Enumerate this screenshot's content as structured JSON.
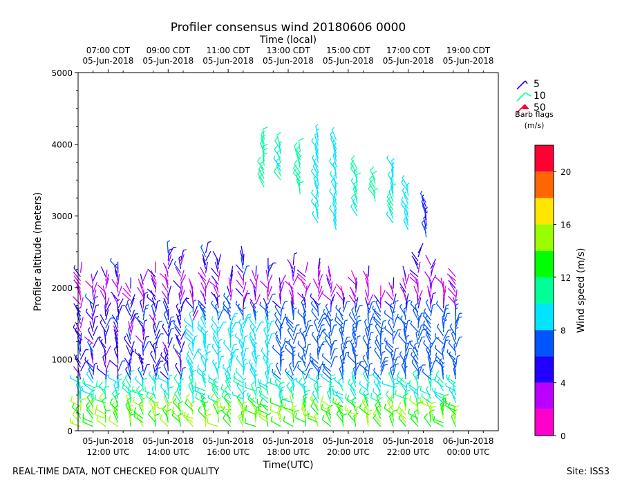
{
  "chart_data": {
    "type": "wind-barb-profile",
    "title": "Profiler consensus wind 20180606 0000",
    "top_axis_label": "Time (local)",
    "xlabel": "Time(UTC)",
    "ylabel": "Profiler altitude (meters)",
    "xlim_hours_after_1200utc": [
      -1,
      13
    ],
    "ylim": [
      0,
      5000
    ],
    "yticks": [
      {
        "value": 0,
        "label": "0"
      },
      {
        "value": 1000,
        "label": "1000"
      },
      {
        "value": 2000,
        "label": "2000"
      },
      {
        "value": 3000,
        "label": "3000"
      },
      {
        "value": 4000,
        "label": "4000"
      },
      {
        "value": 5000,
        "label": "5000"
      }
    ],
    "bottom_ticks": [
      {
        "hour": 0,
        "date": "05-Jun-2018",
        "time": "12:00 UTC"
      },
      {
        "hour": 2,
        "date": "05-Jun-2018",
        "time": "14:00 UTC"
      },
      {
        "hour": 4,
        "date": "05-Jun-2018",
        "time": "16:00 UTC"
      },
      {
        "hour": 6,
        "date": "05-Jun-2018",
        "time": "18:00 UTC"
      },
      {
        "hour": 8,
        "date": "05-Jun-2018",
        "time": "20:00 UTC"
      },
      {
        "hour": 10,
        "date": "05-Jun-2018",
        "time": "22:00 UTC"
      },
      {
        "hour": 12,
        "date": "06-Jun-2018",
        "time": "00:00 UTC"
      }
    ],
    "top_ticks": [
      {
        "hour": 0,
        "time": "07:00 CDT",
        "date": "05-Jun-2018"
      },
      {
        "hour": 2,
        "time": "09:00 CDT",
        "date": "05-Jun-2018"
      },
      {
        "hour": 4,
        "time": "11:00 CDT",
        "date": "05-Jun-2018"
      },
      {
        "hour": 6,
        "time": "13:00 CDT",
        "date": "05-Jun-2018"
      },
      {
        "hour": 8,
        "time": "15:00 CDT",
        "date": "05-Jun-2018"
      },
      {
        "hour": 10,
        "time": "17:00 CDT",
        "date": "05-Jun-2018"
      },
      {
        "hour": 12,
        "time": "19:00 CDT",
        "date": "05-Jun-2018"
      }
    ],
    "colorbar": {
      "label": "Wind speed (m/s)",
      "min": 0,
      "max": 22,
      "tick_values": [
        0,
        4,
        8,
        12,
        16,
        20
      ],
      "tick_labels": [
        "0",
        "4",
        "8",
        "12",
        "16",
        "20"
      ],
      "bins": [
        {
          "from": 0,
          "to": 2,
          "color": "#ff00cc"
        },
        {
          "from": 2,
          "to": 4,
          "color": "#bb00ff"
        },
        {
          "from": 4,
          "to": 6,
          "color": "#2200ff"
        },
        {
          "from": 6,
          "to": 8,
          "color": "#0055ff"
        },
        {
          "from": 8,
          "to": 10,
          "color": "#00e5ff"
        },
        {
          "from": 10,
          "to": 12,
          "color": "#00ff99"
        },
        {
          "from": 12,
          "to": 14,
          "color": "#00ff00"
        },
        {
          "from": 14,
          "to": 16,
          "color": "#99ff00"
        },
        {
          "from": 16,
          "to": 18,
          "color": "#ffe600"
        },
        {
          "from": 18,
          "to": 20,
          "color": "#ff6600"
        },
        {
          "from": 20,
          "to": 22,
          "color": "#ff0033"
        }
      ]
    },
    "barb_legend": {
      "title_line1": "Barb flags",
      "title_line2": "(m/s)",
      "items": [
        {
          "label": "5",
          "color": "#2200ff"
        },
        {
          "label": "10",
          "color": "#00ff99"
        },
        {
          "label": "50",
          "color": "#ff0033"
        }
      ]
    },
    "profile_hours": [
      -0.92,
      -0.5,
      -0.08,
      0.33,
      0.75,
      1.17,
      1.58,
      2.0,
      2.42,
      2.83,
      3.25,
      3.67,
      4.08,
      4.5,
      4.92,
      5.33,
      5.75,
      6.17,
      6.58,
      7.0,
      7.42,
      7.83,
      8.25,
      8.67,
      9.08,
      9.5,
      9.92,
      10.33,
      10.75,
      11.17,
      11.58
    ],
    "speed_layers": [
      {
        "from": 0,
        "to": 350,
        "speed": 14
      },
      {
        "from": 350,
        "to": 700,
        "speed": 10
      },
      {
        "from": 700,
        "to": 1200,
        "speed": 5
      },
      {
        "from": 1200,
        "to": 1800,
        "speed": 5
      },
      {
        "from": 1800,
        "to": 2100,
        "speed": 3
      },
      {
        "from": 2100,
        "to": 2500,
        "speed": 5
      }
    ],
    "upper_level_barbs": [
      {
        "hour": 5.2,
        "from": 3400,
        "to": 4100,
        "speed": 11
      },
      {
        "hour": 5.75,
        "from": 3500,
        "to": 4000,
        "speed": 10
      },
      {
        "hour": 6.4,
        "from": 3300,
        "to": 3900,
        "speed": 11
      },
      {
        "hour": 7.0,
        "from": 2900,
        "to": 4100,
        "speed": 9
      },
      {
        "hour": 7.6,
        "from": 2800,
        "to": 4100,
        "speed": 9
      },
      {
        "hour": 8.3,
        "from": 3000,
        "to": 3700,
        "speed": 10
      },
      {
        "hour": 8.9,
        "from": 3200,
        "to": 3500,
        "speed": 11
      },
      {
        "hour": 9.5,
        "from": 2900,
        "to": 3700,
        "speed": 10
      },
      {
        "hour": 10.0,
        "from": 2800,
        "to": 3400,
        "speed": 9
      },
      {
        "hour": 10.6,
        "from": 2700,
        "to": 3200,
        "speed": 6
      }
    ]
  },
  "footer": {
    "left_note": "REAL-TIME DATA, NOT CHECKED FOR QUALITY",
    "site": "Site: ISS3"
  }
}
